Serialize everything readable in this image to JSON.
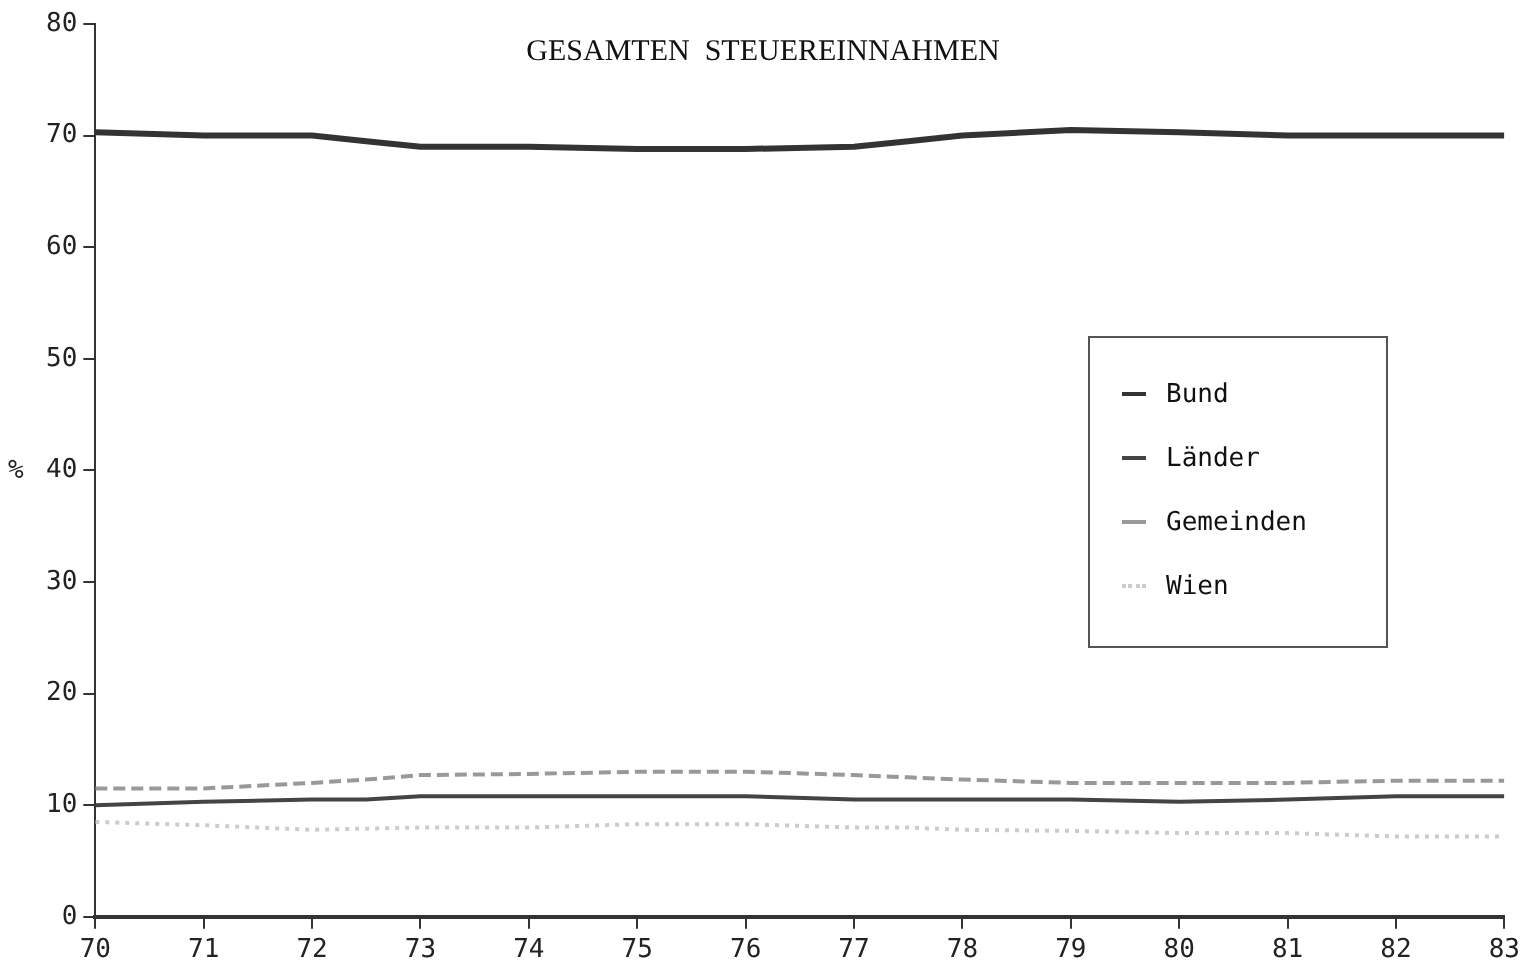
{
  "chart_data": {
    "type": "line",
    "title": "GESAMTEN  STEUEREINNAHMEN",
    "ylabel": "%",
    "x": [
      70,
      71,
      72,
      72.5,
      73,
      74,
      75,
      76,
      77,
      77.5,
      78,
      79,
      80,
      81,
      82,
      83
    ],
    "series": [
      {
        "name": "Bund",
        "color": "#333333",
        "line_style": "solid",
        "values": [
          70.3,
          70,
          70,
          69.5,
          69,
          69,
          68.8,
          68.8,
          69,
          69.5,
          70,
          70.5,
          70.3,
          70,
          70,
          70
        ]
      },
      {
        "name": "Länder",
        "color": "#444444",
        "line_style": "solid",
        "values": [
          10,
          10.3,
          10.5,
          10.5,
          10.8,
          10.8,
          10.8,
          10.8,
          10.5,
          10.5,
          10.5,
          10.5,
          10.3,
          10.5,
          10.8,
          10.8
        ]
      },
      {
        "name": "Gemeinden",
        "color": "#999999",
        "line_style": "dashed",
        "values": [
          11.5,
          11.5,
          12,
          12.3,
          12.7,
          12.8,
          13,
          13,
          12.7,
          12.5,
          12.3,
          12,
          12,
          12,
          12.2,
          12.2
        ]
      },
      {
        "name": "Wien",
        "color": "#cccccc",
        "line_style": "dotted",
        "values": [
          8.5,
          8.2,
          7.8,
          7.9,
          8,
          8,
          8.3,
          8.3,
          8,
          8,
          7.8,
          7.7,
          7.5,
          7.5,
          7.2,
          7.2
        ]
      }
    ],
    "xlim": [
      70,
      83
    ],
    "xticks": [
      70,
      71,
      72,
      73,
      74,
      75,
      76,
      77,
      78,
      79,
      80,
      81,
      82,
      83
    ],
    "ylim": [
      0,
      80
    ],
    "yticks": [
      0,
      10,
      20,
      30,
      40,
      50,
      60,
      70,
      80
    ],
    "grid": false,
    "legend": "right",
    "marker": "none"
  }
}
